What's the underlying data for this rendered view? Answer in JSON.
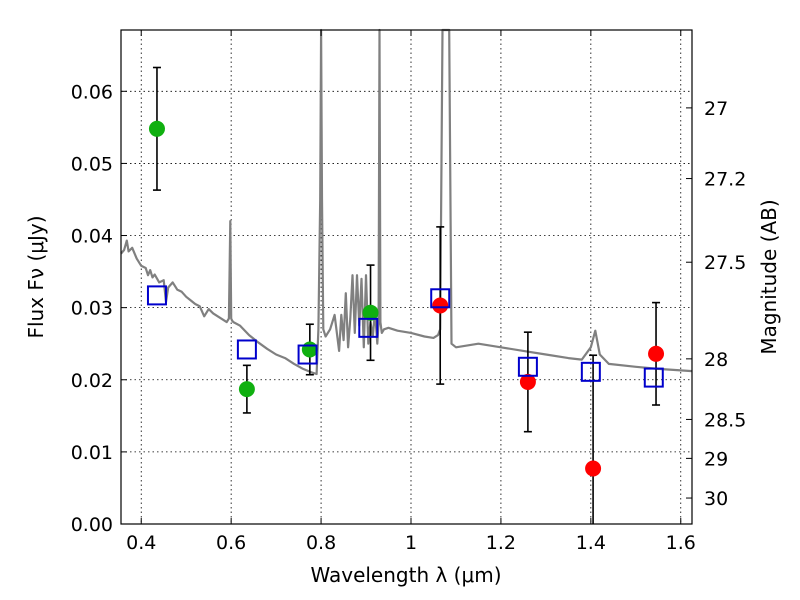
{
  "chart_data": {
    "type": "scatter",
    "xlabel": "Wavelength λ (μm)",
    "ylabel": "Flux Fν (μJy)",
    "ylabel_right": "Magnitude (AB)",
    "xlim": [
      0.355,
      1.625
    ],
    "ylim": [
      0,
      0.0685
    ],
    "xticks": [
      0.4,
      0.6,
      0.8,
      1.0,
      1.2,
      1.4,
      1.6
    ],
    "xtick_labels": [
      "0.4",
      "0.6",
      "0.8",
      "1",
      "1.2",
      "1.4",
      "1.6"
    ],
    "yticks": [
      0,
      0.01,
      0.02,
      0.03,
      0.04,
      0.05,
      0.06
    ],
    "ytick_labels": [
      "0.00",
      "0.01",
      "0.02",
      "0.03",
      "0.04",
      "0.05",
      "0.06"
    ],
    "right_ticks": [
      {
        "flux": 0.0577,
        "label": "27"
      },
      {
        "flux": 0.0479,
        "label": "27.2"
      },
      {
        "flux": 0.0363,
        "label": "27.5"
      },
      {
        "flux": 0.0229,
        "label": "28"
      },
      {
        "flux": 0.0145,
        "label": "28.5"
      },
      {
        "flux": 0.0091,
        "label": "29"
      },
      {
        "flux": 0.0036,
        "label": "30"
      }
    ],
    "grid": true,
    "colors": {
      "green": "#10b010",
      "red": "#ff0000",
      "model": "#808080",
      "square": "#0000cc",
      "errorbar": "#000000"
    },
    "series": [
      {
        "marker": "circle",
        "color": "green",
        "points": [
          {
            "x": 0.435,
            "y": 0.0548,
            "err": 0.0085
          },
          {
            "x": 0.635,
            "y": 0.0187,
            "err": 0.0033
          },
          {
            "x": 0.775,
            "y": 0.0242,
            "err": 0.0035
          },
          {
            "x": 0.91,
            "y": 0.0293,
            "err": 0.0066
          }
        ]
      },
      {
        "marker": "circle",
        "color": "red",
        "points": [
          {
            "x": 1.065,
            "y": 0.0303,
            "err": 0.0109
          },
          {
            "x": 1.26,
            "y": 0.0197,
            "err": 0.0069
          },
          {
            "x": 1.405,
            "y": 0.0077,
            "err": 0.0157
          },
          {
            "x": 1.545,
            "y": 0.0236,
            "err": 0.0071
          }
        ]
      },
      {
        "marker": "square",
        "color": "square",
        "points": [
          {
            "x": 0.435,
            "y": 0.0317
          },
          {
            "x": 0.635,
            "y": 0.0242
          },
          {
            "x": 0.77,
            "y": 0.0235
          },
          {
            "x": 0.905,
            "y": 0.0272
          },
          {
            "x": 1.065,
            "y": 0.0313
          },
          {
            "x": 1.26,
            "y": 0.0218
          },
          {
            "x": 1.4,
            "y": 0.0211
          },
          {
            "x": 1.54,
            "y": 0.0203
          }
        ]
      }
    ],
    "model_spectrum": {
      "x": [
        0.355,
        0.362,
        0.368,
        0.372,
        0.38,
        0.39,
        0.4,
        0.41,
        0.415,
        0.42,
        0.425,
        0.43,
        0.44,
        0.45,
        0.455,
        0.46,
        0.47,
        0.48,
        0.49,
        0.5,
        0.51,
        0.52,
        0.53,
        0.54,
        0.55,
        0.56,
        0.57,
        0.58,
        0.59,
        0.595,
        0.598,
        0.6,
        0.602,
        0.605,
        0.62,
        0.64,
        0.66,
        0.68,
        0.7,
        0.72,
        0.74,
        0.76,
        0.78,
        0.79,
        0.794,
        0.798,
        0.8,
        0.802,
        0.805,
        0.81,
        0.82,
        0.83,
        0.84,
        0.845,
        0.85,
        0.855,
        0.86,
        0.865,
        0.87,
        0.875,
        0.88,
        0.885,
        0.89,
        0.895,
        0.9,
        0.905,
        0.91,
        0.915,
        0.92,
        0.925,
        0.928,
        0.93,
        0.932,
        0.935,
        0.94,
        0.95,
        0.97,
        1.0,
        1.03,
        1.05,
        1.06,
        1.065,
        1.07,
        1.075,
        1.08,
        1.085,
        1.09,
        1.1,
        1.15,
        1.2,
        1.25,
        1.3,
        1.35,
        1.38,
        1.4,
        1.41,
        1.42,
        1.44,
        1.5,
        1.55,
        1.6,
        1.625
      ],
      "y": [
        0.0375,
        0.038,
        0.0393,
        0.0378,
        0.0383,
        0.0368,
        0.0358,
        0.0355,
        0.0345,
        0.0352,
        0.0342,
        0.0346,
        0.0335,
        0.0338,
        0.0308,
        0.0328,
        0.0335,
        0.0325,
        0.0322,
        0.0315,
        0.031,
        0.0305,
        0.0302,
        0.0288,
        0.0298,
        0.0292,
        0.0288,
        0.0284,
        0.028,
        0.0285,
        0.042,
        0.0285,
        0.0282,
        0.028,
        0.0275,
        0.0262,
        0.0252,
        0.0243,
        0.0235,
        0.023,
        0.0222,
        0.0215,
        0.021,
        0.0208,
        0.027,
        0.045,
        0.0685,
        0.045,
        0.027,
        0.026,
        0.027,
        0.029,
        0.024,
        0.029,
        0.0255,
        0.032,
        0.0245,
        0.0285,
        0.0345,
        0.0265,
        0.0345,
        0.0275,
        0.034,
        0.0245,
        0.0345,
        0.025,
        0.028,
        0.026,
        0.0295,
        0.025,
        0.028,
        0.0685,
        0.028,
        0.0265,
        0.027,
        0.0272,
        0.0268,
        0.0265,
        0.026,
        0.0258,
        0.0262,
        0.027,
        0.0685,
        0.0685,
        0.0685,
        0.0685,
        0.025,
        0.0245,
        0.025,
        0.0245,
        0.024,
        0.0235,
        0.023,
        0.0228,
        0.0245,
        0.0268,
        0.0235,
        0.0222,
        0.0218,
        0.0215,
        0.0213,
        0.0212
      ]
    }
  }
}
